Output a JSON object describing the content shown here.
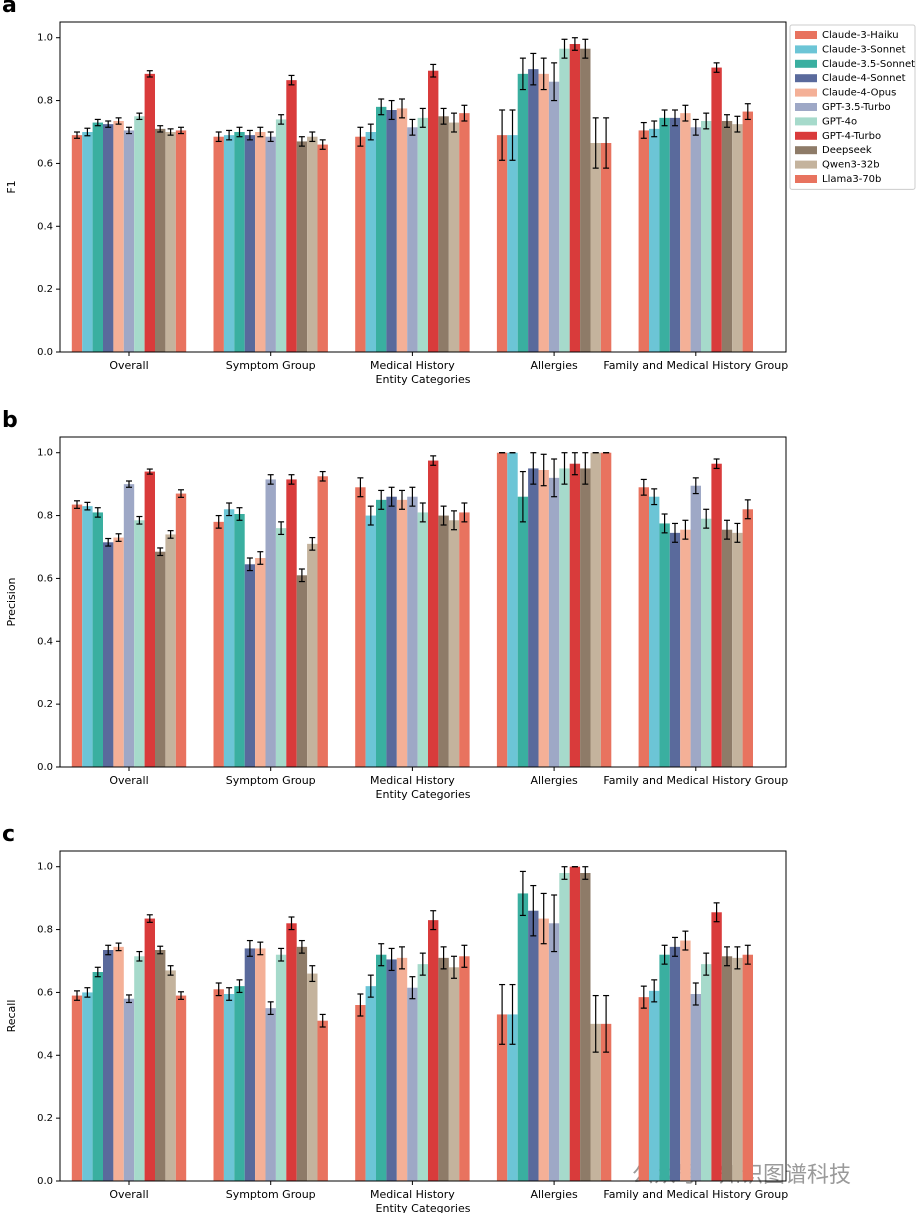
{
  "watermark": "公众号 · 知识图谱科技",
  "chart_data": [
    {
      "type": "bar",
      "panel_label": "a",
      "ylabel": "F1",
      "xlabel": "Entity Categories",
      "legend": "upper right",
      "categories": [
        "Overall",
        "Symptom Group",
        "Medical History",
        "Allergies",
        "Family and Medical History Group"
      ],
      "ylim": [
        0,
        1.05
      ],
      "yticks": [
        {
          "value": 0,
          "label": "0.0"
        },
        0.2,
        0.4,
        0.6,
        0.8,
        {
          "value": 1,
          "label": "1.0"
        }
      ],
      "series": [
        {
          "name": "Claude-3-Haiku",
          "color": "#e8735f",
          "values": [
            0.69,
            0.685,
            0.685,
            0.69,
            0.705
          ],
          "errors": [
            0.01,
            0.015,
            0.03,
            0.08,
            0.025
          ]
        },
        {
          "name": "Claude-3-Sonnet",
          "color": "#6cc5d6",
          "values": [
            0.7,
            0.69,
            0.7,
            0.69,
            0.71
          ],
          "errors": [
            0.012,
            0.015,
            0.025,
            0.08,
            0.025
          ]
        },
        {
          "name": "Claude-3.5-Sonnet",
          "color": "#3aafa0",
          "values": [
            0.73,
            0.7,
            0.78,
            0.885,
            0.745
          ],
          "errors": [
            0.01,
            0.015,
            0.025,
            0.05,
            0.025
          ]
        },
        {
          "name": "Claude-4-Sonnet",
          "color": "#5a6a9c",
          "values": [
            0.725,
            0.69,
            0.77,
            0.9,
            0.745
          ],
          "errors": [
            0.01,
            0.015,
            0.03,
            0.05,
            0.025
          ]
        },
        {
          "name": "Claude-4-Opus",
          "color": "#f4b097",
          "values": [
            0.735,
            0.7,
            0.775,
            0.885,
            0.76
          ],
          "errors": [
            0.01,
            0.015,
            0.03,
            0.05,
            0.025
          ]
        },
        {
          "name": "GPT-3.5-Turbo",
          "color": "#9ea8c6",
          "values": [
            0.705,
            0.685,
            0.715,
            0.86,
            0.715
          ],
          "errors": [
            0.01,
            0.015,
            0.025,
            0.06,
            0.025
          ]
        },
        {
          "name": "GPT-4o",
          "color": "#a6dacb",
          "values": [
            0.75,
            0.74,
            0.745,
            0.965,
            0.735
          ],
          "errors": [
            0.01,
            0.015,
            0.03,
            0.03,
            0.025
          ]
        },
        {
          "name": "GPT-4-Turbo",
          "color": "#d93b3b",
          "values": [
            0.885,
            0.865,
            0.895,
            0.98,
            0.905
          ],
          "errors": [
            0.01,
            0.015,
            0.02,
            0.02,
            0.015
          ]
        },
        {
          "name": "Deepseek",
          "color": "#8e7b68",
          "values": [
            0.71,
            0.67,
            0.75,
            0.965,
            0.735
          ],
          "errors": [
            0.01,
            0.015,
            0.025,
            0.03,
            0.02
          ]
        },
        {
          "name": "Qwen3-32b",
          "color": "#c4b39d",
          "values": [
            0.7,
            0.685,
            0.73,
            0.665,
            0.725
          ],
          "errors": [
            0.01,
            0.015,
            0.03,
            0.08,
            0.025
          ]
        },
        {
          "name": "Llama3-70b",
          "color": "#e8735f",
          "values": [
            0.705,
            0.66,
            0.76,
            0.665,
            0.765
          ],
          "errors": [
            0.01,
            0.015,
            0.025,
            0.08,
            0.025
          ]
        }
      ]
    },
    {
      "type": "bar",
      "panel_label": "b",
      "ylabel": "Precision",
      "xlabel": "Entity Categories",
      "categories": [
        "Overall",
        "Symptom Group",
        "Medical History",
        "Allergies",
        "Family and Medical History Group"
      ],
      "ylim": [
        0,
        1.05
      ],
      "yticks": [
        {
          "value": 0,
          "label": "0.0"
        },
        0.2,
        0.4,
        0.6,
        0.8,
        {
          "value": 1,
          "label": "1.0"
        }
      ],
      "series": [
        {
          "color": "#e8735f",
          "values": [
            0.835,
            0.78,
            0.89,
            1.0,
            0.89
          ],
          "errors": [
            0.012,
            0.02,
            0.03,
            0,
            0.025
          ]
        },
        {
          "color": "#6cc5d6",
          "values": [
            0.83,
            0.82,
            0.8,
            1.0,
            0.86
          ],
          "errors": [
            0.012,
            0.02,
            0.03,
            0,
            0.025
          ]
        },
        {
          "color": "#3aafa0",
          "values": [
            0.81,
            0.805,
            0.85,
            0.86,
            0.775
          ],
          "errors": [
            0.015,
            0.02,
            0.03,
            0.08,
            0.03
          ]
        },
        {
          "color": "#5a6a9c",
          "values": [
            0.715,
            0.645,
            0.86,
            0.95,
            0.745
          ],
          "errors": [
            0.012,
            0.02,
            0.03,
            0.05,
            0.03
          ]
        },
        {
          "color": "#f4b097",
          "values": [
            0.73,
            0.665,
            0.85,
            0.945,
            0.755
          ],
          "errors": [
            0.012,
            0.02,
            0.03,
            0.05,
            0.03
          ]
        },
        {
          "color": "#9ea8c6",
          "values": [
            0.9,
            0.915,
            0.86,
            0.92,
            0.895
          ],
          "errors": [
            0.01,
            0.015,
            0.03,
            0.06,
            0.025
          ]
        },
        {
          "color": "#a6dacb",
          "values": [
            0.785,
            0.76,
            0.81,
            0.95,
            0.79
          ],
          "errors": [
            0.012,
            0.02,
            0.03,
            0.05,
            0.03
          ]
        },
        {
          "color": "#d93b3b",
          "values": [
            0.94,
            0.915,
            0.975,
            0.965,
            0.965
          ],
          "errors": [
            0.008,
            0.015,
            0.015,
            0.035,
            0.015
          ]
        },
        {
          "color": "#8e7b68",
          "values": [
            0.685,
            0.61,
            0.8,
            0.95,
            0.755
          ],
          "errors": [
            0.012,
            0.02,
            0.03,
            0.05,
            0.03
          ]
        },
        {
          "color": "#c4b39d",
          "values": [
            0.74,
            0.71,
            0.785,
            1.0,
            0.745
          ],
          "errors": [
            0.012,
            0.02,
            0.03,
            0,
            0.03
          ]
        },
        {
          "color": "#e8735f",
          "values": [
            0.87,
            0.925,
            0.81,
            1.0,
            0.82
          ],
          "errors": [
            0.012,
            0.015,
            0.03,
            0,
            0.03
          ]
        }
      ]
    },
    {
      "type": "bar",
      "panel_label": "c",
      "ylabel": "Recall",
      "xlabel": "Entity Categories",
      "categories": [
        "Overall",
        "Symptom Group",
        "Medical History",
        "Allergies",
        "Family and Medical History Group"
      ],
      "ylim": [
        0,
        1.05
      ],
      "yticks": [
        {
          "value": 0,
          "label": "0.0"
        },
        0.2,
        0.4,
        0.6,
        0.8,
        {
          "value": 1,
          "label": "1.0"
        }
      ],
      "series": [
        {
          "color": "#e8735f",
          "values": [
            0.59,
            0.61,
            0.56,
            0.53,
            0.585
          ],
          "errors": [
            0.015,
            0.02,
            0.035,
            0.095,
            0.035
          ]
        },
        {
          "color": "#6cc5d6",
          "values": [
            0.6,
            0.595,
            0.62,
            0.53,
            0.605
          ],
          "errors": [
            0.015,
            0.02,
            0.035,
            0.095,
            0.035
          ]
        },
        {
          "color": "#3aafa0",
          "values": [
            0.665,
            0.62,
            0.72,
            0.915,
            0.72
          ],
          "errors": [
            0.015,
            0.02,
            0.035,
            0.07,
            0.03
          ]
        },
        {
          "color": "#5a6a9c",
          "values": [
            0.735,
            0.74,
            0.705,
            0.86,
            0.745
          ],
          "errors": [
            0.015,
            0.025,
            0.035,
            0.08,
            0.03
          ]
        },
        {
          "color": "#f4b097",
          "values": [
            0.745,
            0.74,
            0.71,
            0.835,
            0.765
          ],
          "errors": [
            0.012,
            0.02,
            0.035,
            0.08,
            0.03
          ]
        },
        {
          "color": "#9ea8c6",
          "values": [
            0.58,
            0.55,
            0.615,
            0.82,
            0.595
          ],
          "errors": [
            0.012,
            0.02,
            0.035,
            0.09,
            0.035
          ]
        },
        {
          "color": "#a6dacb",
          "values": [
            0.715,
            0.72,
            0.69,
            0.98,
            0.69
          ],
          "errors": [
            0.015,
            0.02,
            0.035,
            0.02,
            0.035
          ]
        },
        {
          "color": "#d93b3b",
          "values": [
            0.835,
            0.82,
            0.83,
            1.0,
            0.855
          ],
          "errors": [
            0.012,
            0.02,
            0.03,
            0,
            0.03
          ]
        },
        {
          "color": "#8e7b68",
          "values": [
            0.735,
            0.745,
            0.71,
            0.98,
            0.715
          ],
          "errors": [
            0.012,
            0.02,
            0.035,
            0.02,
            0.03
          ]
        },
        {
          "color": "#c4b39d",
          "values": [
            0.67,
            0.66,
            0.68,
            0.5,
            0.71
          ],
          "errors": [
            0.015,
            0.025,
            0.035,
            0.09,
            0.035
          ]
        },
        {
          "color": "#e8735f",
          "values": [
            0.59,
            0.51,
            0.715,
            0.5,
            0.72
          ],
          "errors": [
            0.012,
            0.02,
            0.035,
            0.09,
            0.03
          ]
        }
      ]
    }
  ]
}
